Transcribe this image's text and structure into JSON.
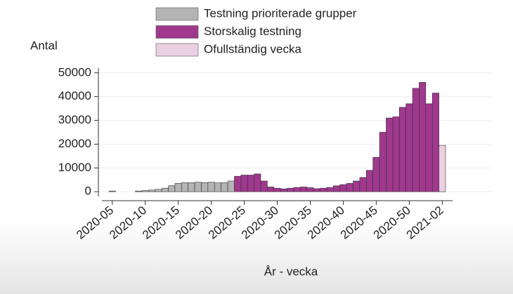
{
  "chart_data": {
    "type": "bar",
    "ylabel": "Antal",
    "xlabel": "År - vecka",
    "categories": [
      "2020-05",
      null,
      null,
      null,
      null,
      "2020-10",
      null,
      null,
      null,
      null,
      "2020-15",
      null,
      null,
      null,
      null,
      "2020-20",
      null,
      null,
      null,
      null,
      "2020-25",
      null,
      null,
      null,
      null,
      "2020-30",
      null,
      null,
      null,
      null,
      "2020-35",
      null,
      null,
      null,
      null,
      "2020-40",
      null,
      null,
      null,
      null,
      "2020-45",
      null,
      null,
      null,
      null,
      "2020-50",
      null,
      null,
      null,
      null,
      "2021-02"
    ],
    "series": [
      {
        "name": "Testning prioriterade grupper",
        "color": "#b4b4b4",
        "values": [
          300,
          null,
          null,
          null,
          300,
          500,
          700,
          1000,
          1500,
          2500,
          3500,
          3800,
          3800,
          4000,
          3800,
          4000,
          3700,
          3800,
          4500,
          null,
          null,
          null,
          null,
          null,
          null,
          null,
          null,
          null,
          null,
          null,
          null,
          null,
          null,
          null,
          null,
          null,
          null,
          null,
          null,
          null,
          null,
          null,
          null,
          null,
          null,
          null,
          null,
          null,
          null,
          null,
          null
        ]
      },
      {
        "name": "Storskalig testning",
        "color": "#a0388e",
        "values": [
          null,
          null,
          null,
          null,
          null,
          null,
          null,
          null,
          null,
          null,
          null,
          null,
          null,
          null,
          null,
          null,
          null,
          null,
          null,
          6500,
          7000,
          7000,
          7500,
          4500,
          2000,
          1500,
          1200,
          1500,
          1800,
          2000,
          1700,
          1300,
          1500,
          1800,
          2500,
          3000,
          3500,
          4500,
          6000,
          9000,
          14500,
          25000,
          31000,
          31500,
          35500,
          37000,
          43500,
          46000,
          37000,
          41500,
          null
        ]
      },
      {
        "name": "Ofullständig vecka",
        "color": "#ead0e2",
        "values": [
          null,
          null,
          null,
          null,
          null,
          null,
          null,
          null,
          null,
          null,
          null,
          null,
          null,
          null,
          null,
          null,
          null,
          null,
          null,
          null,
          null,
          null,
          null,
          null,
          null,
          null,
          null,
          null,
          null,
          null,
          null,
          null,
          null,
          null,
          null,
          null,
          null,
          null,
          null,
          null,
          null,
          null,
          null,
          null,
          null,
          null,
          null,
          null,
          null,
          null,
          19500
        ]
      }
    ],
    "ylim": [
      -2000,
      52000
    ],
    "yticks": [
      0,
      10000,
      20000,
      30000,
      40000,
      50000
    ],
    "grid": true
  }
}
